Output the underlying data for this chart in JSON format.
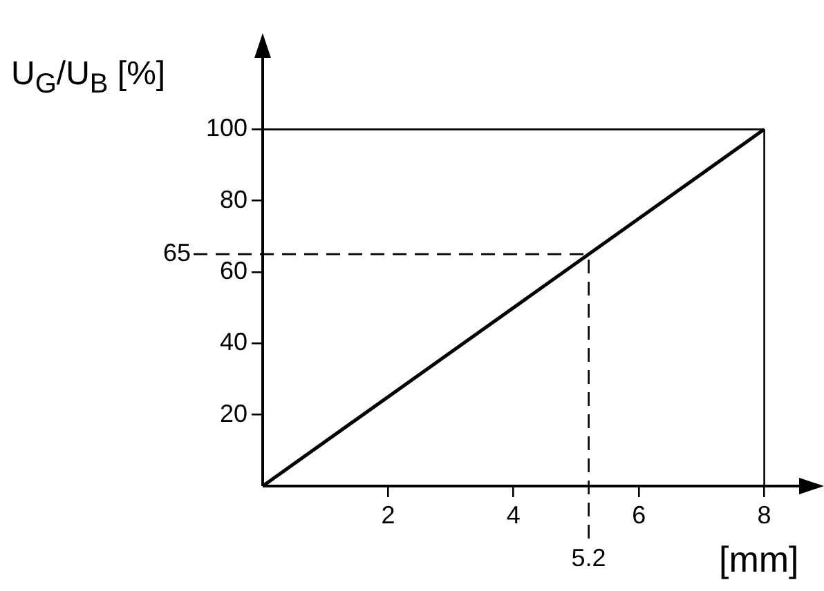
{
  "chart_data": {
    "type": "line",
    "ylabel": "U$_{G}$/U$_{B}$ [%]",
    "xlabel": "[mm]",
    "x": [
      0,
      8
    ],
    "series": [
      {
        "color": "#000000",
        "values": [
          0,
          100
        ]
      }
    ],
    "xlim": [
      0,
      8.6
    ],
    "ylim": [
      0,
      120
    ],
    "xticks": [
      2,
      4,
      6,
      8
    ],
    "yticks": [
      20,
      40,
      60,
      80,
      100
    ],
    "ref_lines": [
      {
        "axis": "y",
        "value": 65,
        "label": "65",
        "line_style": "dashed"
      },
      {
        "axis": "x",
        "value": 5.2,
        "label": "5.2",
        "line_style": "dashed"
      },
      {
        "axis": "y",
        "value": 100,
        "line_style": "solid"
      },
      {
        "axis": "x",
        "value": 8,
        "line_style": "solid"
      }
    ],
    "grid": false,
    "legend": false,
    "marker": "none",
    "line_style": "solid"
  }
}
